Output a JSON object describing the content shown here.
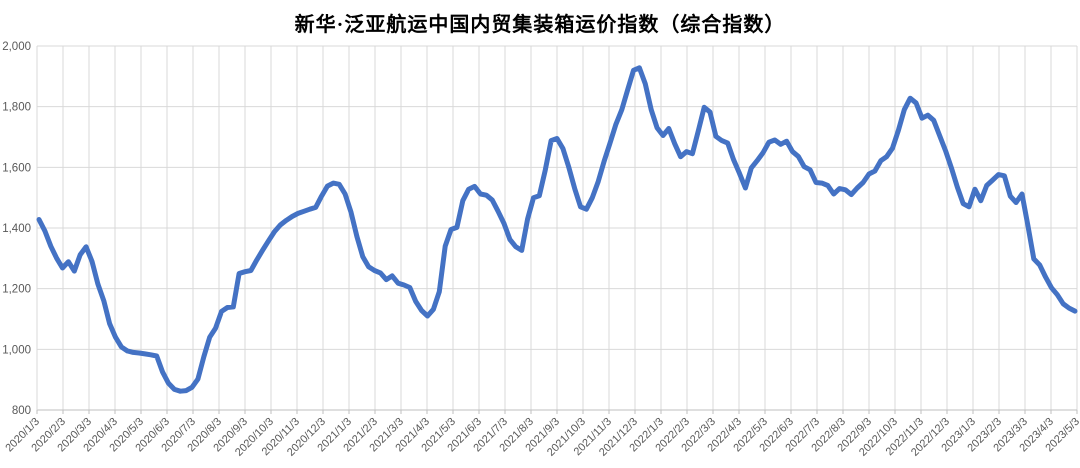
{
  "title": "新华·泛亚航运中国内贸集装箱运价指数（综合指数）",
  "chart_data": {
    "type": "line",
    "title": "新华·泛亚航运中国内贸集装箱运价指数（综合指数）",
    "xlabel": "",
    "ylabel": "",
    "ylim": [
      800,
      2000
    ],
    "ytick_step": 200,
    "y_tick_labels": [
      "800",
      "1,000",
      "1,200",
      "1,400",
      "1,600",
      "1,800",
      "2,000"
    ],
    "grid": true,
    "legend_position": "none",
    "line_color": "#4472C4",
    "gridline_color": "#D9D9D9",
    "axis_line_color": "#BFBFBF",
    "tick_label_color": "#595959",
    "x_labels": [
      "2020/1/3",
      "2020/2/3",
      "2020/3/3",
      "2020/4/3",
      "2020/5/3",
      "2020/6/3",
      "2020/7/3",
      "2020/8/3",
      "2020/9/3",
      "2020/10/3",
      "2020/11/3",
      "2020/12/3",
      "2021/1/3",
      "2021/2/3",
      "2021/3/3",
      "2021/4/3",
      "2021/5/3",
      "2021/6/3",
      "2021/7/3",
      "2021/8/3",
      "2021/9/3",
      "2021/10/3",
      "2021/11/3",
      "2021/12/3",
      "2022/1/3",
      "2022/2/3",
      "2022/3/3",
      "2022/4/3",
      "2022/5/3",
      "2022/6/3",
      "2022/7/3",
      "2022/8/3",
      "2022/9/3",
      "2022/10/3",
      "2022/11/3",
      "2022/12/3",
      "2023/1/3",
      "2023/2/3",
      "2023/3/3",
      "2023/4/3",
      "2023/5/3"
    ],
    "x_frequency": "weekly",
    "series": [
      {
        "name": "综合指数",
        "values": [
          1428,
          1390,
          1340,
          1300,
          1268,
          1289,
          1258,
          1312,
          1338,
          1290,
          1215,
          1160,
          1085,
          1040,
          1008,
          995,
          990,
          988,
          985,
          982,
          978,
          925,
          888,
          868,
          862,
          864,
          875,
          902,
          975,
          1040,
          1070,
          1125,
          1138,
          1140,
          1250,
          1256,
          1260,
          1295,
          1327,
          1358,
          1388,
          1410,
          1425,
          1438,
          1448,
          1455,
          1462,
          1468,
          1505,
          1538,
          1548,
          1544,
          1512,
          1452,
          1372,
          1305,
          1272,
          1260,
          1252,
          1230,
          1242,
          1218,
          1212,
          1204,
          1158,
          1128,
          1110,
          1132,
          1190,
          1340,
          1395,
          1402,
          1490,
          1528,
          1537,
          1512,
          1508,
          1492,
          1455,
          1415,
          1362,
          1338,
          1326,
          1430,
          1500,
          1506,
          1590,
          1688,
          1695,
          1662,
          1600,
          1530,
          1470,
          1462,
          1500,
          1553,
          1620,
          1680,
          1742,
          1790,
          1855,
          1920,
          1928,
          1875,
          1790,
          1730,
          1705,
          1728,
          1678,
          1635,
          1652,
          1645,
          1720,
          1798,
          1782,
          1702,
          1688,
          1680,
          1625,
          1580,
          1532,
          1598,
          1622,
          1648,
          1683,
          1690,
          1676,
          1686,
          1652,
          1636,
          1602,
          1592,
          1550,
          1548,
          1540,
          1512,
          1530,
          1526,
          1510,
          1532,
          1550,
          1578,
          1588,
          1622,
          1635,
          1663,
          1722,
          1790,
          1828,
          1812,
          1762,
          1772,
          1755,
          1705,
          1655,
          1598,
          1535,
          1480,
          1470,
          1528,
          1490,
          1540,
          1558,
          1576,
          1572,
          1505,
          1484,
          1512,
          1408,
          1298,
          1278,
          1238,
          1203,
          1180,
          1150,
          1136,
          1126
        ]
      }
    ]
  }
}
